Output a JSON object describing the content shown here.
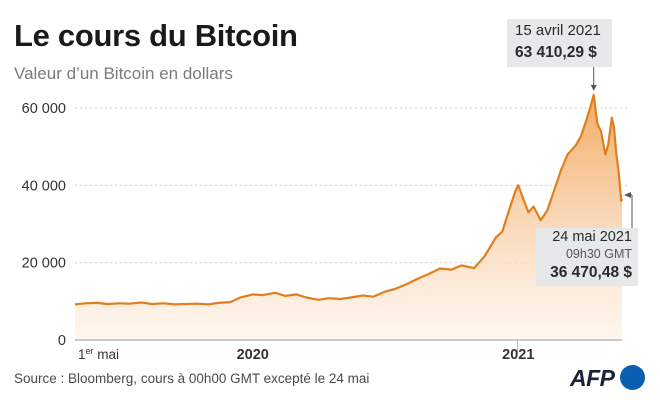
{
  "header": {
    "title": "Le cours du Bitcoin",
    "subtitle": "Valeur d’un Bitcoin en dollars"
  },
  "footer": {
    "source": "Source : Bloomberg, cours à 00h00 GMT excepté le 24 mai",
    "logo_text": "AFP"
  },
  "annotations": {
    "peak": {
      "date": "15 avril 2021",
      "value": "63 410,29 $"
    },
    "last": {
      "date": "24 mai 2021",
      "time": "09h30 GMT",
      "value": "36 470,48 $"
    }
  },
  "colors": {
    "line": "#e07f20",
    "area_top": "#f2a65a",
    "area_bottom": "#fdf1e6",
    "grid": "#cfcfcf",
    "annotation_bg": "#e6e8ea",
    "logo_blue": "#0b5fb0"
  },
  "chart_data": {
    "type": "area",
    "title": "Le cours du Bitcoin",
    "subtitle": "Valeur d’un Bitcoin en dollars",
    "xlabel": "",
    "ylabel": "",
    "ylim": [
      0,
      65000
    ],
    "xlim": [
      "2019-05-01",
      "2021-05-24"
    ],
    "y_ticks": [
      {
        "value": 0,
        "label": "0"
      },
      {
        "value": 20000,
        "label": "20 000"
      },
      {
        "value": 40000,
        "label": "40 000"
      },
      {
        "value": 60000,
        "label": "60 000"
      }
    ],
    "x_ticks": [
      {
        "date": "2019-05-01",
        "label": "1",
        "sup": "er",
        "tail": " mai"
      },
      {
        "date": "2020-01-01",
        "label": "2020",
        "sup": "",
        "tail": ""
      },
      {
        "date": "2021-01-01",
        "label": "2021",
        "sup": "",
        "tail": ""
      }
    ],
    "grid": "horizontal dashed",
    "series": [
      {
        "values": [
          [
            "2019-05-01",
            9200
          ],
          [
            "2019-05-15",
            9500
          ],
          [
            "2019-06-01",
            9600
          ],
          [
            "2019-06-15",
            9300
          ],
          [
            "2019-07-01",
            9500
          ],
          [
            "2019-07-15",
            9400
          ],
          [
            "2019-08-01",
            9700
          ],
          [
            "2019-08-15",
            9300
          ],
          [
            "2019-09-01",
            9500
          ],
          [
            "2019-09-15",
            9200
          ],
          [
            "2019-10-01",
            9300
          ],
          [
            "2019-10-15",
            9400
          ],
          [
            "2019-11-01",
            9200
          ],
          [
            "2019-11-15",
            9600
          ],
          [
            "2019-12-01",
            9800
          ],
          [
            "2019-12-15",
            11000
          ],
          [
            "2020-01-01",
            11800
          ],
          [
            "2020-01-15",
            11600
          ],
          [
            "2020-02-01",
            12200
          ],
          [
            "2020-02-15",
            11400
          ],
          [
            "2020-03-01",
            11800
          ],
          [
            "2020-03-15",
            11000
          ],
          [
            "2020-04-01",
            10400
          ],
          [
            "2020-04-15",
            10800
          ],
          [
            "2020-05-01",
            10600
          ],
          [
            "2020-05-15",
            11000
          ],
          [
            "2020-06-01",
            11500
          ],
          [
            "2020-06-15",
            11200
          ],
          [
            "2020-07-01",
            12500
          ],
          [
            "2020-07-15",
            13200
          ],
          [
            "2020-08-01",
            14500
          ],
          [
            "2020-08-15",
            15800
          ],
          [
            "2020-09-01",
            17200
          ],
          [
            "2020-09-15",
            18500
          ],
          [
            "2020-10-01",
            18200
          ],
          [
            "2020-10-15",
            19300
          ],
          [
            "2020-11-01",
            18600
          ],
          [
            "2020-11-15",
            21500
          ],
          [
            "2020-12-01",
            26500
          ],
          [
            "2020-12-10",
            28000
          ],
          [
            "2020-12-20",
            34000
          ],
          [
            "2020-12-28",
            38500
          ],
          [
            "2021-01-01",
            40000
          ],
          [
            "2021-01-08",
            36500
          ],
          [
            "2021-01-15",
            33000
          ],
          [
            "2021-01-22",
            34500
          ],
          [
            "2021-02-01",
            31000
          ],
          [
            "2021-02-10",
            33500
          ],
          [
            "2021-02-20",
            39000
          ],
          [
            "2021-03-01",
            44000
          ],
          [
            "2021-03-10",
            48000
          ],
          [
            "2021-03-15",
            49000
          ],
          [
            "2021-03-22",
            50500
          ],
          [
            "2021-03-29",
            53000
          ],
          [
            "2021-04-05",
            57000
          ],
          [
            "2021-04-10",
            60000
          ],
          [
            "2021-04-15",
            63410.29
          ],
          [
            "2021-04-20",
            56000
          ],
          [
            "2021-04-25",
            54000
          ],
          [
            "2021-05-01",
            48000
          ],
          [
            "2021-05-05",
            50500
          ],
          [
            "2021-05-10",
            57500
          ],
          [
            "2021-05-13",
            55000
          ],
          [
            "2021-05-16",
            48500
          ],
          [
            "2021-05-19",
            44000
          ],
          [
            "2021-05-21",
            40000
          ],
          [
            "2021-05-23",
            36000
          ],
          [
            "2021-05-24",
            36470.48
          ]
        ]
      }
    ]
  }
}
